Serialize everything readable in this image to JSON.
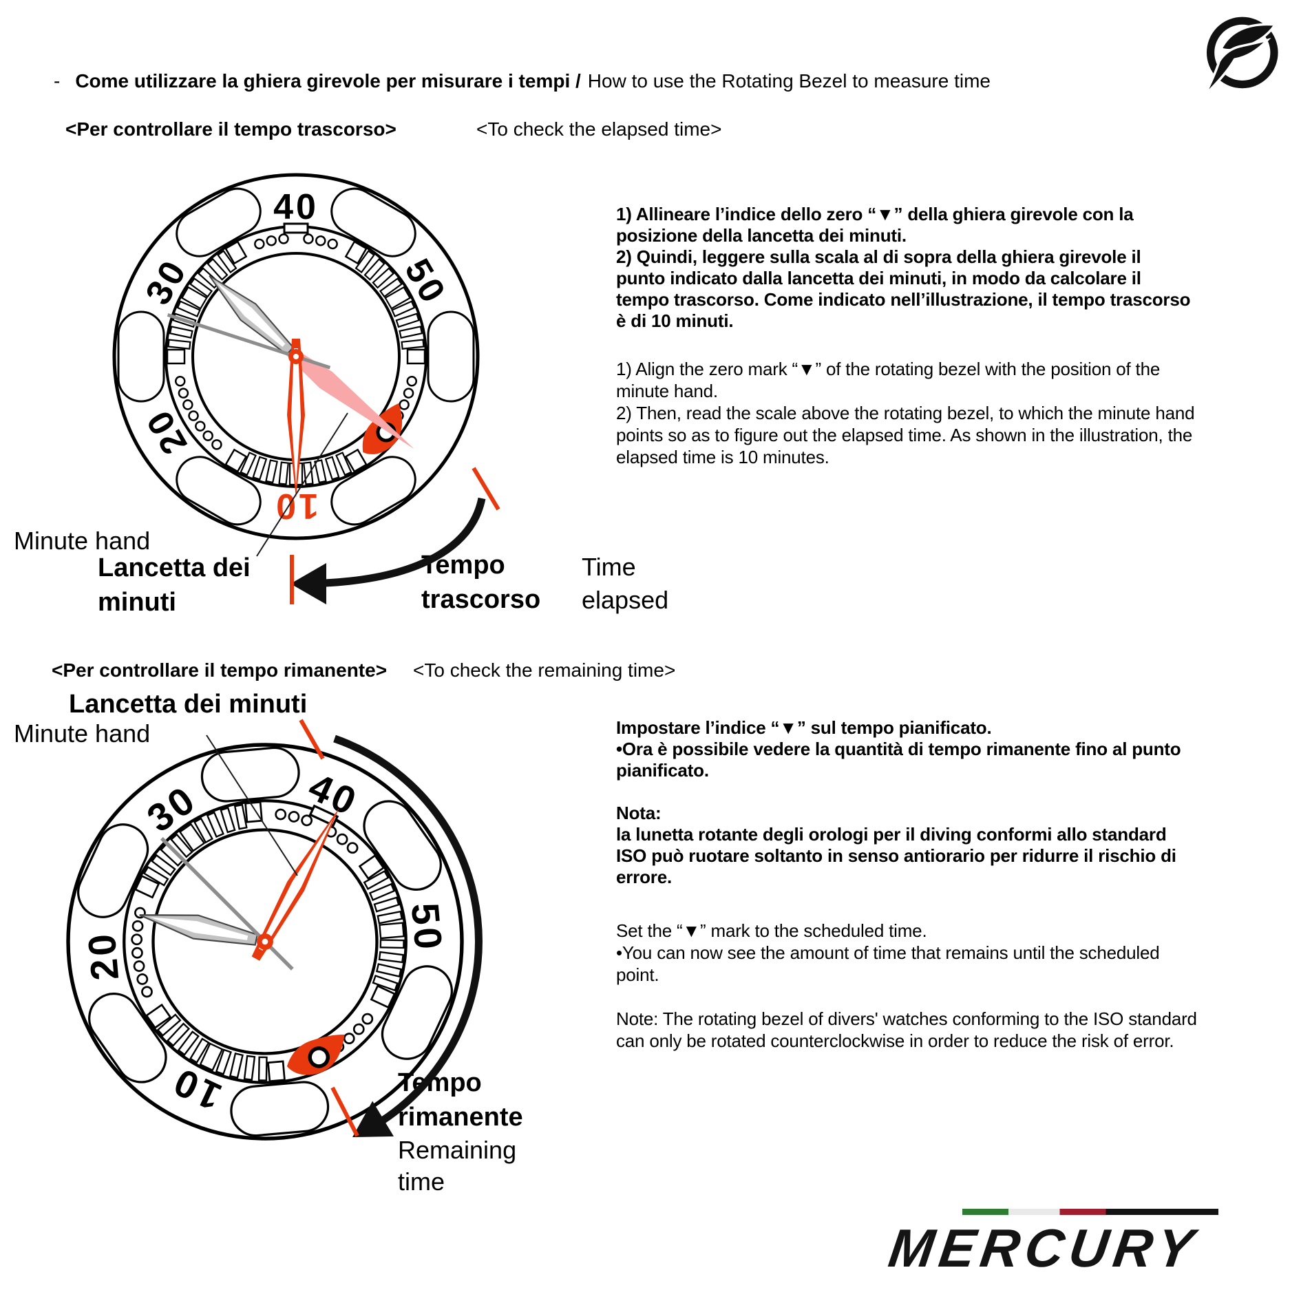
{
  "header": {
    "dash": "-",
    "title_it": "Come utilizzare la ghiera girevole per misurare i tempi /",
    "title_en": "How to use the Rotating Bezel to measure time"
  },
  "section_elapsed": {
    "heading_it": "<Per controllare il tempo trascorso>",
    "heading_en": "<To check the elapsed time>",
    "para_it": "1) Allineare l’indice dello zero “▼” della ghiera girevole con la\nposizione della lancetta dei minuti.\n2) Quindi, leggere sulla scala al di sopra della ghiera girevole il\npunto indicato dalla lancetta dei minuti, in modo da calcolare il\ntempo trascorso. Come indicato nell’illustrazione, il tempo trascorso\nè di 10 minuti.",
    "para_en": "1) Align the zero mark “▼” of the rotating bezel with the position of the\nminute hand.\n2) Then, read the scale above the rotating bezel, to which the minute hand\npoints so as to figure out the elapsed time. As shown in the illustration, the\nelapsed time is 10 minutes.",
    "label_minute_hand_en": "Minute hand",
    "label_minute_hand_it": "Lancetta dei\nminuti",
    "label_elapsed_it": "Tempo\ntrascorso",
    "label_elapsed_en": "Time\nelapsed"
  },
  "section_remaining": {
    "heading_it": "<Per controllare il tempo rimanente>",
    "heading_en": "<To check the remaining time>",
    "label_minute_hand_it": "Lancetta dei minuti",
    "label_minute_hand_en": "Minute hand",
    "para_it": "Impostare l’indice “▼” sul tempo pianificato.\n•Ora è possibile vedere la quantità di tempo rimanente fino al punto\npianificato.\n\nNota:\nla lunetta rotante degli orologi per il diving conformi allo standard\nISO può ruotare soltanto in senso antiorario per ridurre il rischio di\nerrore.",
    "para_en": "Set the “▼” mark to the scheduled time.\n•You can now see the amount of time that remains until the scheduled\npoint.\n\nNote: The rotating bezel of divers' watches conforming to the ISO standard\ncan only be rotated counterclockwise in order to reduce the risk of error.",
    "label_remaining_it": "Tempo\nrimanente",
    "label_remaining_en": "Remaining\ntime"
  },
  "watches": {
    "accent_red": "#e8380d",
    "accent_pink": "#f8a8a8",
    "watch_elapsed": {
      "bezel_rotation": 0,
      "numbers": [
        {
          "label": "40",
          "angle": 0,
          "color": "#000000"
        },
        {
          "label": "50",
          "angle": 60,
          "color": "#000000"
        },
        {
          "label": "10",
          "angle": 180,
          "color": "#e8380d"
        },
        {
          "label": "20",
          "angle": 240,
          "color": "#000000"
        },
        {
          "label": "30",
          "angle": 300,
          "color": "#000000"
        }
      ],
      "marker_angle": 130,
      "hands": {
        "minute_angle": 180,
        "hour_angle": 313,
        "second_angle": 288,
        "ghost_angle": 128
      }
    },
    "watch_remaining": {
      "bezel_rotation": 25,
      "numbers": [
        {
          "label": "40",
          "angle": 25,
          "color": "#000000"
        },
        {
          "label": "50",
          "angle": 85,
          "color": "#000000"
        },
        {
          "label": "10",
          "angle": 205,
          "color": "#000000"
        },
        {
          "label": "20",
          "angle": 265,
          "color": "#000000"
        },
        {
          "label": "30",
          "angle": 325,
          "color": "#000000"
        }
      ],
      "marker_angle": 155,
      "hands": {
        "minute_angle": 29,
        "hour_angle": 282,
        "second_angle": 315,
        "ghost_angle": null
      }
    }
  },
  "branding": {
    "wordmark": "MERCURY",
    "flag_colors": [
      "#2f7d33",
      "#e9e9e9",
      "#9f1f2f",
      "#141414"
    ]
  }
}
